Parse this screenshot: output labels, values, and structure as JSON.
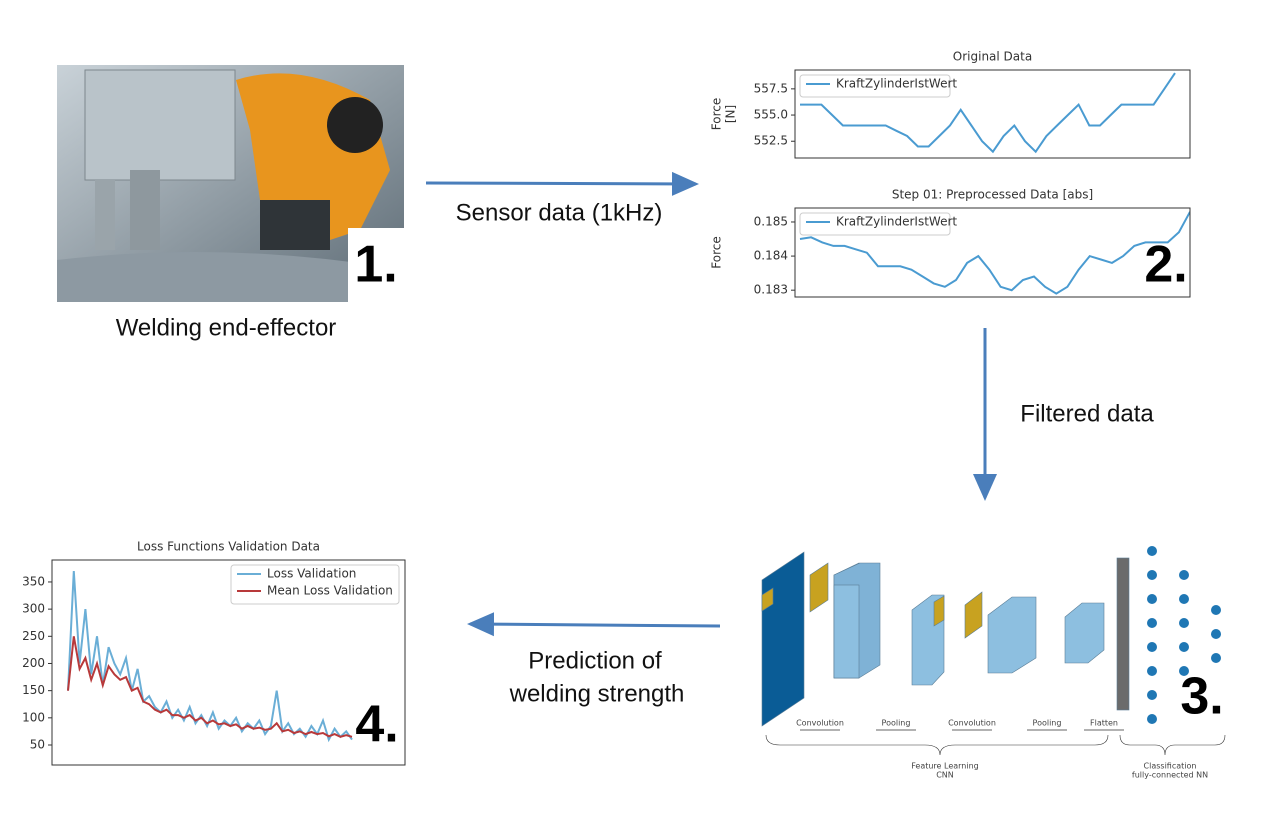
{
  "nodes": [
    {
      "badge": "1.",
      "caption": "Welding end-effector"
    },
    {
      "badge": "2.",
      "charts": [
        {
          "type": "line",
          "title": "Original Data",
          "ylabel": [
            "Force",
            "[N]"
          ],
          "ylim": [
            550.9,
            559.3
          ],
          "yticks": [
            552.5,
            {
              "value": 555,
              "label": "555.0"
            },
            557.5
          ],
          "legend": "upper left",
          "series": [
            {
              "name": "KraftZylinderIstWert",
              "color": "#4a9bd1",
              "values": [
                556,
                556,
                556,
                555,
                554,
                554,
                554,
                554,
                554,
                553.5,
                553,
                552,
                552,
                553,
                554,
                555.5,
                554,
                552.5,
                551.5,
                553,
                554,
                552.5,
                551.5,
                553,
                554,
                555,
                556,
                554,
                554,
                555,
                556,
                556,
                556,
                556,
                557.5,
                559
              ]
            }
          ]
        },
        {
          "type": "line",
          "title": "Step 01: Preprocessed Data [abs]",
          "ylabel": [
            "Force"
          ],
          "ylim": [
            0.1828,
            0.18541
          ],
          "yticks": [
            0.183,
            0.184,
            0.185
          ],
          "legend": "upper left",
          "series": [
            {
              "name": "KraftZylinderIstWert",
              "color": "#4a9bd1",
              "values": [
                0.1845,
                0.18455,
                0.1844,
                0.1843,
                0.1843,
                0.1842,
                0.1841,
                0.1837,
                0.1837,
                0.1837,
                0.1836,
                0.1834,
                0.1832,
                0.1831,
                0.1833,
                0.1838,
                0.184,
                0.1836,
                0.1831,
                0.183,
                0.1833,
                0.1834,
                0.1831,
                0.1829,
                0.1831,
                0.1836,
                0.184,
                0.1839,
                0.1838,
                0.184,
                0.1843,
                0.1844,
                0.1844,
                0.1844,
                0.1847,
                0.1853
              ]
            }
          ]
        }
      ]
    },
    {
      "badge": "3.",
      "stages": [
        "Convolution",
        "Pooling",
        "Convolution",
        "Pooling",
        "Flatten"
      ],
      "groups": [
        {
          "label": "Feature Learning",
          "sublabel": "CNN"
        },
        {
          "label": "Classification",
          "sublabel": "fully-connected NN"
        }
      ]
    },
    {
      "badge": "4.",
      "chart": {
        "type": "line",
        "title": "Loss Functions Validation Data",
        "ylim": [
          13.2,
          390.4
        ],
        "yticks": [
          50,
          100,
          150,
          200,
          250,
          300,
          350
        ],
        "legend": "upper right",
        "series": [
          {
            "name": "Loss Validation",
            "color": "#6aaed6",
            "values": [
              150,
              370,
              200,
              300,
              180,
              250,
              160,
              230,
              200,
              180,
              210,
              150,
              190,
              130,
              140,
              120,
              110,
              130,
              100,
              115,
              95,
              120,
              90,
              105,
              85,
              110,
              80,
              95,
              85,
              100,
              75,
              90,
              80,
              95,
              70,
              85,
              150,
              75,
              90,
              70,
              80,
              65,
              85,
              70,
              95,
              60,
              80,
              65,
              75,
              60
            ]
          },
          {
            "name": "Mean Loss Validation",
            "color": "#b8393a",
            "values": [
              150,
              250,
              190,
              210,
              170,
              200,
              160,
              195,
              180,
              170,
              175,
              150,
              155,
              130,
              125,
              115,
              110,
              115,
              105,
              105,
              100,
              105,
              95,
              100,
              90,
              95,
              88,
              90,
              85,
              88,
              80,
              85,
              80,
              82,
              78,
              80,
              90,
              75,
              78,
              72,
              75,
              70,
              74,
              70,
              72,
              66,
              70,
              65,
              68,
              65
            ]
          }
        ]
      }
    }
  ],
  "edges": [
    {
      "label": "Sensor data (1kHz)"
    },
    {
      "label": "Filtered data"
    },
    {
      "label_lines": [
        "Prediction of",
        "welding strength"
      ]
    }
  ]
}
